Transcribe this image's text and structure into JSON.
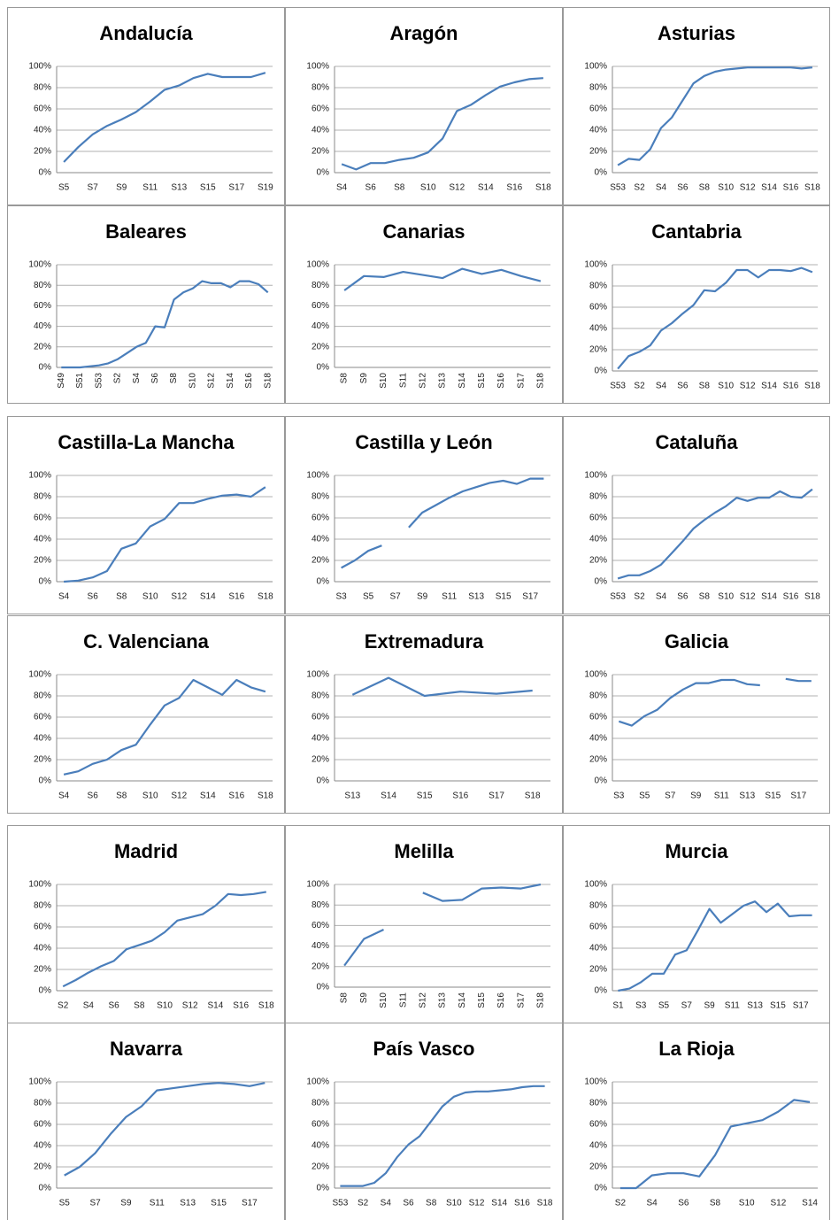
{
  "chart_data": [
    {
      "type": "line",
      "title": "Andalucía",
      "categories": [
        "S5",
        null,
        "S7",
        null,
        "S9",
        null,
        "S11",
        null,
        "S13",
        null,
        "S15",
        null,
        "S17",
        null,
        "S19"
      ],
      "values": [
        10,
        24,
        36,
        44,
        50,
        57,
        67,
        78,
        82,
        89,
        93,
        90,
        90,
        90,
        94
      ],
      "color": "#4a7ebb",
      "ylim": [
        0,
        100
      ],
      "yticks": [
        {
          "value": 0,
          "label": "0%"
        },
        {
          "value": 20,
          "label": "20%"
        },
        {
          "value": 40,
          "label": "40%"
        },
        {
          "value": 60,
          "label": "60%"
        },
        {
          "value": 80,
          "label": "80%"
        },
        {
          "value": 100,
          "label": "100%"
        }
      ],
      "grid": true,
      "rotated_labels": false
    },
    {
      "type": "line",
      "title": "Aragón",
      "categories": [
        "S4",
        null,
        "S6",
        null,
        "S8",
        null,
        "S10",
        null,
        "S12",
        null,
        "S14",
        null,
        "S16",
        null,
        "S18"
      ],
      "values": [
        8,
        3,
        9,
        9,
        12,
        14,
        19,
        32,
        58,
        64,
        73,
        81,
        85,
        88,
        89
      ],
      "color": "#4a7ebb",
      "ylim": [
        0,
        100
      ],
      "yticks": [
        {
          "value": 0,
          "label": "0%"
        },
        {
          "value": 20,
          "label": "20%"
        },
        {
          "value": 40,
          "label": "40%"
        },
        {
          "value": 60,
          "label": "60%"
        },
        {
          "value": 80,
          "label": "80%"
        },
        {
          "value": 100,
          "label": "100%"
        }
      ],
      "grid": true,
      "rotated_labels": false
    },
    {
      "type": "line",
      "title": "Asturias",
      "categories": [
        "S53",
        null,
        "S2",
        null,
        "S4",
        null,
        "S6",
        null,
        "S8",
        null,
        "S10",
        null,
        "S12",
        null,
        "S14",
        null,
        "S16",
        null,
        "S18"
      ],
      "values": [
        7,
        13,
        12,
        22,
        42,
        52,
        68,
        84,
        91,
        95,
        97,
        98,
        99,
        99,
        99,
        99,
        99,
        98,
        99
      ],
      "color": "#4a7ebb",
      "ylim": [
        0,
        100
      ],
      "yticks": [
        {
          "value": 0,
          "label": "0%"
        },
        {
          "value": 20,
          "label": "20%"
        },
        {
          "value": 40,
          "label": "40%"
        },
        {
          "value": 60,
          "label": "60%"
        },
        {
          "value": 80,
          "label": "80%"
        },
        {
          "value": 100,
          "label": "100%"
        }
      ],
      "grid": true,
      "rotated_labels": false
    },
    {
      "type": "line",
      "title": "Baleares",
      "categories": [
        "S49",
        null,
        "S51",
        null,
        "S53",
        null,
        "S2",
        null,
        "S4",
        null,
        "S6",
        null,
        "S8",
        null,
        "S10",
        null,
        "S12",
        null,
        "S14",
        null,
        "S16",
        null,
        "S18"
      ],
      "values": [
        0,
        0,
        0,
        1,
        2,
        4,
        8,
        14,
        20,
        24,
        40,
        39,
        66,
        73,
        77,
        84,
        82,
        82,
        78,
        84,
        84,
        81,
        73
      ],
      "color": "#4a7ebb",
      "ylim": [
        0,
        100
      ],
      "yticks": [
        {
          "value": 0,
          "label": "0%"
        },
        {
          "value": 20,
          "label": "20%"
        },
        {
          "value": 40,
          "label": "40%"
        },
        {
          "value": 60,
          "label": "60%"
        },
        {
          "value": 80,
          "label": "80%"
        },
        {
          "value": 100,
          "label": "100%"
        }
      ],
      "grid": true,
      "rotated_labels": true
    },
    {
      "type": "line",
      "title": "Canarias",
      "categories": [
        "S8",
        "S9",
        "S10",
        "S11",
        "S12",
        "S13",
        "S14",
        "S15",
        "S16",
        "S17",
        "S18"
      ],
      "values": [
        75,
        89,
        88,
        93,
        90,
        87,
        96,
        91,
        95,
        89,
        84
      ],
      "color": "#4a7ebb",
      "ylim": [
        0,
        100
      ],
      "yticks": [
        {
          "value": 0,
          "label": "0%"
        },
        {
          "value": 20,
          "label": "20%"
        },
        {
          "value": 40,
          "label": "40%"
        },
        {
          "value": 60,
          "label": "60%"
        },
        {
          "value": 80,
          "label": "80%"
        },
        {
          "value": 100,
          "label": "100%"
        }
      ],
      "grid": true,
      "rotated_labels": true
    },
    {
      "type": "line",
      "title": "Cantabria",
      "categories": [
        "S53",
        null,
        "S2",
        null,
        "S4",
        null,
        "S6",
        null,
        "S8",
        null,
        "S10",
        null,
        "S12",
        null,
        "S14",
        null,
        "S16",
        null,
        "S18"
      ],
      "values": [
        2,
        14,
        18,
        24,
        38,
        45,
        54,
        62,
        76,
        75,
        83,
        95,
        95,
        88,
        95,
        95,
        94,
        97,
        93
      ],
      "color": "#4a7ebb",
      "ylim": [
        0,
        100
      ],
      "yticks": [
        {
          "value": 0,
          "label": "0%"
        },
        {
          "value": 20,
          "label": "20%"
        },
        {
          "value": 40,
          "label": "40%"
        },
        {
          "value": 60,
          "label": "60%"
        },
        {
          "value": 80,
          "label": "80%"
        },
        {
          "value": 100,
          "label": "100%"
        }
      ],
      "grid": true,
      "rotated_labels": false
    },
    {
      "type": "line",
      "title": "Castilla-La Mancha",
      "categories": [
        "S4",
        null,
        "S6",
        null,
        "S8",
        null,
        "S10",
        null,
        "S12",
        null,
        "S14",
        null,
        "S16",
        null,
        "S18"
      ],
      "values": [
        0,
        1,
        4,
        10,
        31,
        36,
        52,
        59,
        74,
        74,
        78,
        81,
        82,
        80,
        89
      ],
      "color": "#4a7ebb",
      "ylim": [
        0,
        100
      ],
      "yticks": [
        {
          "value": 0,
          "label": "0%"
        },
        {
          "value": 20,
          "label": "20%"
        },
        {
          "value": 40,
          "label": "40%"
        },
        {
          "value": 60,
          "label": "60%"
        },
        {
          "value": 80,
          "label": "80%"
        },
        {
          "value": 100,
          "label": "100%"
        }
      ],
      "grid": true,
      "rotated_labels": false
    },
    {
      "type": "line",
      "title": "Castilla y León",
      "categories": [
        "S3",
        null,
        "S5",
        null,
        "S7",
        null,
        "S9",
        null,
        "S11",
        null,
        "S13",
        null,
        "S15",
        null,
        "S17",
        null
      ],
      "values": [
        13,
        20,
        29,
        34,
        null,
        51,
        65,
        72,
        79,
        85,
        89,
        93,
        95,
        92,
        97,
        97
      ],
      "color": "#4a7ebb",
      "ylim": [
        0,
        100
      ],
      "yticks": [
        {
          "value": 0,
          "label": "0%"
        },
        {
          "value": 20,
          "label": "20%"
        },
        {
          "value": 40,
          "label": "40%"
        },
        {
          "value": 60,
          "label": "60%"
        },
        {
          "value": 80,
          "label": "80%"
        },
        {
          "value": 100,
          "label": "100%"
        }
      ],
      "grid": true,
      "rotated_labels": false
    },
    {
      "type": "line",
      "title": "Cataluña",
      "categories": [
        "S53",
        null,
        "S2",
        null,
        "S4",
        null,
        "S6",
        null,
        "S8",
        null,
        "S10",
        null,
        "S12",
        null,
        "S14",
        null,
        "S16",
        null,
        "S18"
      ],
      "values": [
        3,
        6,
        6,
        10,
        16,
        27,
        38,
        50,
        58,
        65,
        71,
        79,
        76,
        79,
        79,
        85,
        80,
        79,
        87
      ],
      "color": "#4a7ebb",
      "ylim": [
        0,
        100
      ],
      "yticks": [
        {
          "value": 0,
          "label": "0%"
        },
        {
          "value": 20,
          "label": "20%"
        },
        {
          "value": 40,
          "label": "40%"
        },
        {
          "value": 60,
          "label": "60%"
        },
        {
          "value": 80,
          "label": "80%"
        },
        {
          "value": 100,
          "label": "100%"
        }
      ],
      "grid": true,
      "rotated_labels": false
    },
    {
      "type": "line",
      "title": "C. Valenciana",
      "categories": [
        "S4",
        null,
        "S6",
        null,
        "S8",
        null,
        "S10",
        null,
        "S12",
        null,
        "S14",
        null,
        "S16",
        null,
        "S18"
      ],
      "values": [
        6,
        9,
        16,
        20,
        29,
        34,
        53,
        71,
        78,
        95,
        88,
        81,
        95,
        88,
        84
      ],
      "color": "#4a7ebb",
      "ylim": [
        0,
        100
      ],
      "yticks": [
        {
          "value": 0,
          "label": "0%"
        },
        {
          "value": 20,
          "label": "20%"
        },
        {
          "value": 40,
          "label": "40%"
        },
        {
          "value": 60,
          "label": "60%"
        },
        {
          "value": 80,
          "label": "80%"
        },
        {
          "value": 100,
          "label": "100%"
        }
      ],
      "grid": true,
      "rotated_labels": false
    },
    {
      "type": "line",
      "title": "Extremadura",
      "categories": [
        "S13",
        "S14",
        "S15",
        "S16",
        "S17",
        "S18"
      ],
      "values": [
        81,
        97,
        80,
        84,
        82,
        85
      ],
      "color": "#4a7ebb",
      "ylim": [
        0,
        100
      ],
      "yticks": [
        {
          "value": 0,
          "label": "0%"
        },
        {
          "value": 20,
          "label": "20%"
        },
        {
          "value": 40,
          "label": "40%"
        },
        {
          "value": 60,
          "label": "60%"
        },
        {
          "value": 80,
          "label": "80%"
        },
        {
          "value": 100,
          "label": "100%"
        }
      ],
      "grid": true,
      "rotated_labels": false
    },
    {
      "type": "line",
      "title": "Galicia",
      "categories": [
        "S3",
        null,
        "S5",
        null,
        "S7",
        null,
        "S9",
        null,
        "S11",
        null,
        "S13",
        null,
        "S15",
        null,
        "S17",
        null
      ],
      "values": [
        56,
        52,
        61,
        67,
        78,
        86,
        92,
        92,
        95,
        95,
        91,
        90,
        null,
        96,
        94,
        94
      ],
      "color": "#4a7ebb",
      "ylim": [
        0,
        100
      ],
      "yticks": [
        {
          "value": 0,
          "label": "0%"
        },
        {
          "value": 20,
          "label": "20%"
        },
        {
          "value": 40,
          "label": "40%"
        },
        {
          "value": 60,
          "label": "60%"
        },
        {
          "value": 80,
          "label": "80%"
        },
        {
          "value": 100,
          "label": "100%"
        }
      ],
      "grid": true,
      "rotated_labels": false
    },
    {
      "type": "line",
      "title": "Madrid",
      "categories": [
        "S2",
        null,
        "S4",
        null,
        "S6",
        null,
        "S8",
        null,
        "S10",
        null,
        "S12",
        null,
        "S14",
        null,
        "S16",
        null,
        "S18"
      ],
      "values": [
        4,
        10,
        17,
        23,
        28,
        39,
        43,
        47,
        55,
        66,
        69,
        72,
        80,
        91,
        90,
        91,
        93
      ],
      "color": "#4a7ebb",
      "ylim": [
        0,
        100
      ],
      "yticks": [
        {
          "value": 0,
          "label": "0%"
        },
        {
          "value": 20,
          "label": "20%"
        },
        {
          "value": 40,
          "label": "40%"
        },
        {
          "value": 60,
          "label": "60%"
        },
        {
          "value": 80,
          "label": "80%"
        },
        {
          "value": 100,
          "label": "100%"
        }
      ],
      "grid": true,
      "rotated_labels": false
    },
    {
      "type": "line",
      "title": "Melilla",
      "categories": [
        "S8",
        "S9",
        "S10",
        "S11",
        "S12",
        "S13",
        "S14",
        "S15",
        "S16",
        "S17",
        "S18"
      ],
      "values": [
        21,
        47,
        56,
        null,
        92,
        84,
        85,
        96,
        97,
        96,
        100
      ],
      "color": "#4a7ebb",
      "ylim": [
        0,
        100
      ],
      "yticks": [
        {
          "value": 0,
          "label": "0%"
        },
        {
          "value": 20,
          "label": "20%"
        },
        {
          "value": 40,
          "label": "40%"
        },
        {
          "value": 60,
          "label": "60%"
        },
        {
          "value": 80,
          "label": "80%"
        },
        {
          "value": 100,
          "label": "100%"
        }
      ],
      "grid": true,
      "rotated_labels": true
    },
    {
      "type": "line",
      "title": "Murcia",
      "categories": [
        "S1",
        null,
        "S3",
        null,
        "S5",
        null,
        "S7",
        null,
        "S9",
        null,
        "S11",
        null,
        "S13",
        null,
        "S15",
        null,
        "S17",
        null
      ],
      "values": [
        0,
        2,
        8,
        16,
        16,
        34,
        38,
        57,
        77,
        64,
        72,
        80,
        84,
        74,
        82,
        70,
        71,
        71
      ],
      "color": "#4a7ebb",
      "ylim": [
        0,
        100
      ],
      "yticks": [
        {
          "value": 0,
          "label": "0%"
        },
        {
          "value": 20,
          "label": "20%"
        },
        {
          "value": 40,
          "label": "40%"
        },
        {
          "value": 60,
          "label": "60%"
        },
        {
          "value": 80,
          "label": "80%"
        },
        {
          "value": 100,
          "label": "100%"
        }
      ],
      "grid": true,
      "rotated_labels": false
    },
    {
      "type": "line",
      "title": "Navarra",
      "categories": [
        "S5",
        null,
        "S7",
        null,
        "S9",
        null,
        "S11",
        null,
        "S13",
        null,
        "S15",
        null,
        "S17",
        null
      ],
      "values": [
        12,
        20,
        33,
        51,
        67,
        77,
        92,
        94,
        96,
        98,
        99,
        98,
        96,
        99
      ],
      "color": "#4a7ebb",
      "ylim": [
        0,
        100
      ],
      "yticks": [
        {
          "value": 0,
          "label": "0%"
        },
        {
          "value": 20,
          "label": "20%"
        },
        {
          "value": 40,
          "label": "40%"
        },
        {
          "value": 60,
          "label": "60%"
        },
        {
          "value": 80,
          "label": "80%"
        },
        {
          "value": 100,
          "label": "100%"
        }
      ],
      "grid": true,
      "rotated_labels": false
    },
    {
      "type": "line",
      "title": "País Vasco",
      "categories": [
        "S53",
        null,
        "S2",
        null,
        "S4",
        null,
        "S6",
        null,
        "S8",
        null,
        "S10",
        null,
        "S12",
        null,
        "S14",
        null,
        "S16",
        null,
        "S18"
      ],
      "values": [
        2,
        2,
        2,
        5,
        14,
        29,
        41,
        49,
        63,
        77,
        86,
        90,
        91,
        91,
        92,
        93,
        95,
        96,
        96
      ],
      "color": "#4a7ebb",
      "ylim": [
        0,
        100
      ],
      "yticks": [
        {
          "value": 0,
          "label": "0%"
        },
        {
          "value": 20,
          "label": "20%"
        },
        {
          "value": 40,
          "label": "40%"
        },
        {
          "value": 60,
          "label": "60%"
        },
        {
          "value": 80,
          "label": "80%"
        },
        {
          "value": 100,
          "label": "100%"
        }
      ],
      "grid": true,
      "rotated_labels": false
    },
    {
      "type": "line",
      "title": "La Rioja",
      "categories": [
        "S2",
        null,
        "S4",
        null,
        "S6",
        null,
        "S8",
        null,
        "S10",
        null,
        "S12",
        null,
        "S14"
      ],
      "values": [
        0,
        0,
        12,
        14,
        14,
        11,
        31,
        58,
        61,
        64,
        72,
        83,
        81
      ],
      "color": "#4a7ebb",
      "ylim": [
        0,
        100
      ],
      "yticks": [
        {
          "value": 0,
          "label": "0%"
        },
        {
          "value": 20,
          "label": "20%"
        },
        {
          "value": 40,
          "label": "40%"
        },
        {
          "value": 60,
          "label": "60%"
        },
        {
          "value": 80,
          "label": "80%"
        },
        {
          "value": 100,
          "label": "100%"
        }
      ],
      "grid": true,
      "rotated_labels": false
    }
  ]
}
